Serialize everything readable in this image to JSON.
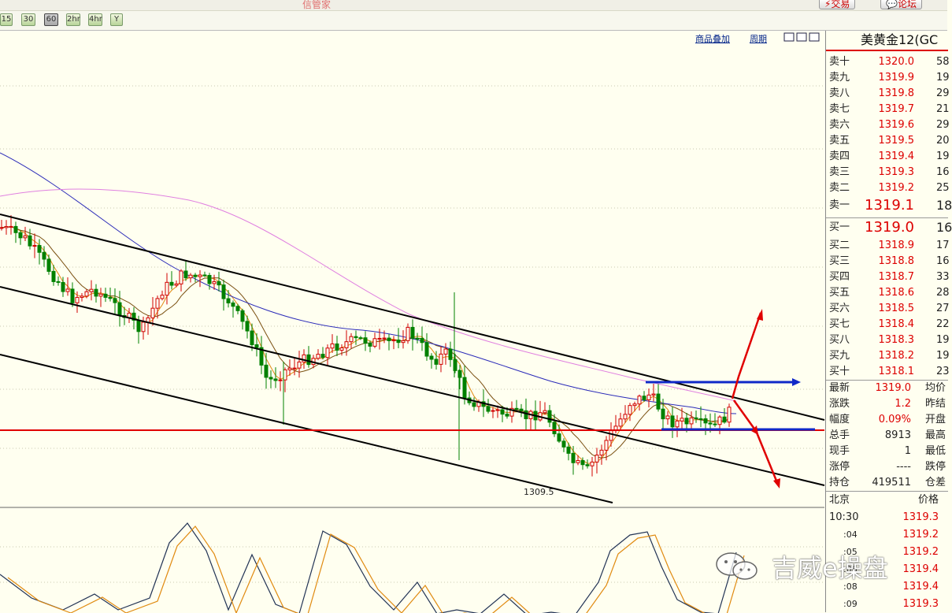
{
  "app": {
    "title": "信管家"
  },
  "top_buttons": {
    "trade": "⚡交易",
    "forum": "💬论坛"
  },
  "toolbar": {
    "periods": [
      "15",
      "30",
      "60",
      "2hr",
      "4hr",
      "Y"
    ],
    "active": "60"
  },
  "chart": {
    "overlay_link": "商品叠加",
    "period_link": "周期",
    "low_label": "1309.5"
  },
  "quote": {
    "title": "美黄金12(GC",
    "asks": [
      {
        "label": "卖十",
        "price": "1320.0",
        "vol": "58"
      },
      {
        "label": "卖九",
        "price": "1319.9",
        "vol": "19"
      },
      {
        "label": "卖八",
        "price": "1319.8",
        "vol": "29"
      },
      {
        "label": "卖七",
        "price": "1319.7",
        "vol": "21"
      },
      {
        "label": "卖六",
        "price": "1319.6",
        "vol": "29"
      },
      {
        "label": "卖五",
        "price": "1319.5",
        "vol": "20"
      },
      {
        "label": "卖四",
        "price": "1319.4",
        "vol": "19"
      },
      {
        "label": "卖三",
        "price": "1319.3",
        "vol": "16"
      },
      {
        "label": "卖二",
        "price": "1319.2",
        "vol": "25"
      },
      {
        "label": "卖一",
        "price": "1319.1",
        "vol": "18"
      }
    ],
    "bids": [
      {
        "label": "买一",
        "price": "1319.0",
        "vol": "16"
      },
      {
        "label": "买二",
        "price": "1318.9",
        "vol": "17"
      },
      {
        "label": "买三",
        "price": "1318.8",
        "vol": "16"
      },
      {
        "label": "买四",
        "price": "1318.7",
        "vol": "33"
      },
      {
        "label": "买五",
        "price": "1318.6",
        "vol": "28"
      },
      {
        "label": "买六",
        "price": "1318.5",
        "vol": "27"
      },
      {
        "label": "买七",
        "price": "1318.4",
        "vol": "22"
      },
      {
        "label": "买八",
        "price": "1318.3",
        "vol": "19"
      },
      {
        "label": "买九",
        "price": "1318.2",
        "vol": "19"
      },
      {
        "label": "买十",
        "price": "1318.1",
        "vol": "23"
      }
    ],
    "stats": [
      {
        "label": "最新",
        "value": "1319.0",
        "right": "均价"
      },
      {
        "label": "涨跌",
        "value": "1.2",
        "right": "昨结"
      },
      {
        "label": "幅度",
        "value": "0.09%",
        "right": "开盘"
      },
      {
        "label": "总手",
        "value": "8913",
        "right": "最高"
      },
      {
        "label": "现手",
        "value": "1",
        "right": "最低"
      },
      {
        "label": "涨停",
        "value": "----",
        "right": "跌停"
      },
      {
        "label": "持仓",
        "value": "419511",
        "right": "仓差"
      }
    ],
    "ticks_header": {
      "place": "北京",
      "price": "价格"
    },
    "ticks": [
      {
        "time": "10:30",
        "price": "1319.3"
      },
      {
        "time": ":04",
        "price": "1319.2"
      },
      {
        "time": ":05",
        "price": "1319.2"
      },
      {
        "time": ":06",
        "price": "1319.4"
      },
      {
        "time": ":08",
        "price": "1319.4"
      },
      {
        "time": ":09",
        "price": "1319.3"
      }
    ]
  },
  "watermark": {
    "text": "吉威e操盘"
  }
}
